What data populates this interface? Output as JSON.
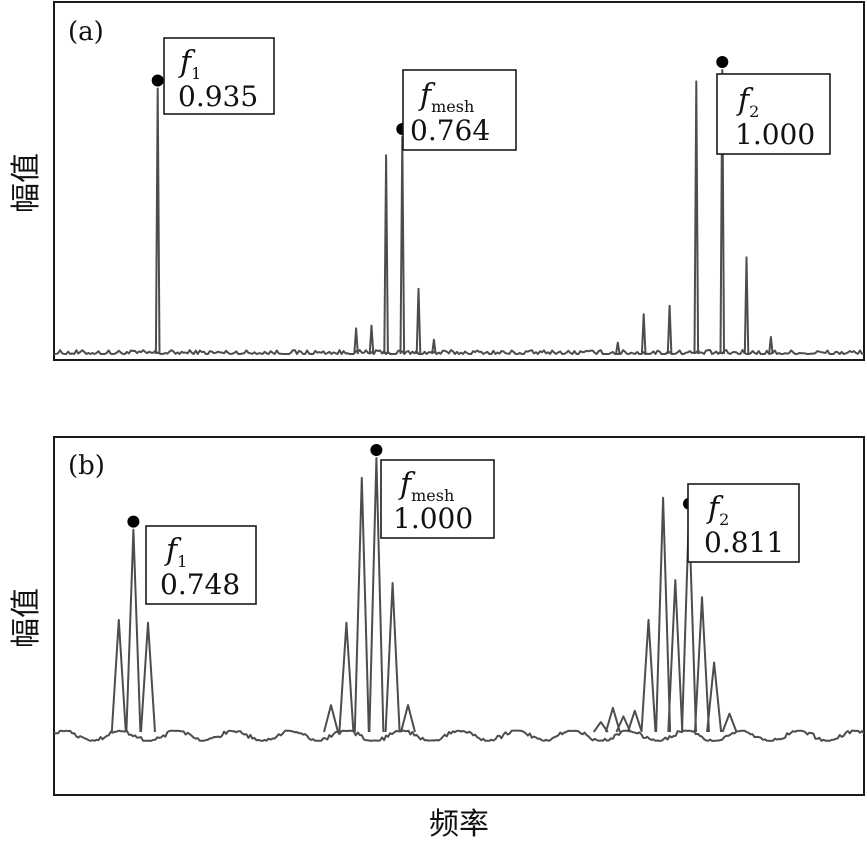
{
  "figure": {
    "ylabel_a": "幅值",
    "ylabel_b": "幅值",
    "xlabel": "频率"
  },
  "chart_data": [
    {
      "type": "line",
      "panel_label": "(a)",
      "xlabel": "",
      "ylabel": "幅值",
      "annotations": [
        {
          "name": "f",
          "sub": "1",
          "value": "0.935"
        },
        {
          "name": "f",
          "sub": "mesh",
          "value": "0.764"
        },
        {
          "name": "f",
          "sub": "2",
          "value": "1.000"
        }
      ],
      "peaks": [
        {
          "x": 0.128,
          "y": 0.935,
          "marked": true
        },
        {
          "x": 0.373,
          "y": 0.09
        },
        {
          "x": 0.392,
          "y": 0.1
        },
        {
          "x": 0.41,
          "y": 0.7
        },
        {
          "x": 0.43,
          "y": 0.764,
          "marked": true
        },
        {
          "x": 0.45,
          "y": 0.23
        },
        {
          "x": 0.469,
          "y": 0.05
        },
        {
          "x": 0.696,
          "y": 0.04
        },
        {
          "x": 0.728,
          "y": 0.14
        },
        {
          "x": 0.76,
          "y": 0.17
        },
        {
          "x": 0.793,
          "y": 0.96
        },
        {
          "x": 0.825,
          "y": 1.0,
          "marked": true
        },
        {
          "x": 0.855,
          "y": 0.34
        },
        {
          "x": 0.885,
          "y": 0.06
        }
      ],
      "noise_level": 0.02,
      "grid": false
    },
    {
      "type": "line",
      "panel_label": "(b)",
      "xlabel": "频率",
      "ylabel": "幅值",
      "annotations": [
        {
          "name": "f",
          "sub": "1",
          "value": "0.748"
        },
        {
          "name": "f",
          "sub": "mesh",
          "value": "1.000"
        },
        {
          "name": "f",
          "sub": "2",
          "value": "0.811"
        }
      ],
      "peaks": [
        {
          "x": 0.08,
          "y": 0.43
        },
        {
          "x": 0.098,
          "y": 0.748,
          "marked": true
        },
        {
          "x": 0.116,
          "y": 0.42
        },
        {
          "x": 0.342,
          "y": 0.13
        },
        {
          "x": 0.361,
          "y": 0.42
        },
        {
          "x": 0.38,
          "y": 0.93
        },
        {
          "x": 0.398,
          "y": 1.0,
          "marked": true
        },
        {
          "x": 0.418,
          "y": 0.56
        },
        {
          "x": 0.437,
          "y": 0.13
        },
        {
          "x": 0.675,
          "y": 0.07
        },
        {
          "x": 0.69,
          "y": 0.12
        },
        {
          "x": 0.703,
          "y": 0.09
        },
        {
          "x": 0.717,
          "y": 0.11
        },
        {
          "x": 0.734,
          "y": 0.43
        },
        {
          "x": 0.752,
          "y": 0.86
        },
        {
          "x": 0.767,
          "y": 0.57
        },
        {
          "x": 0.784,
          "y": 0.811,
          "marked": true
        },
        {
          "x": 0.8,
          "y": 0.51
        },
        {
          "x": 0.815,
          "y": 0.28
        },
        {
          "x": 0.834,
          "y": 0.1
        }
      ],
      "noise_level": 0.04,
      "grid": false
    }
  ]
}
